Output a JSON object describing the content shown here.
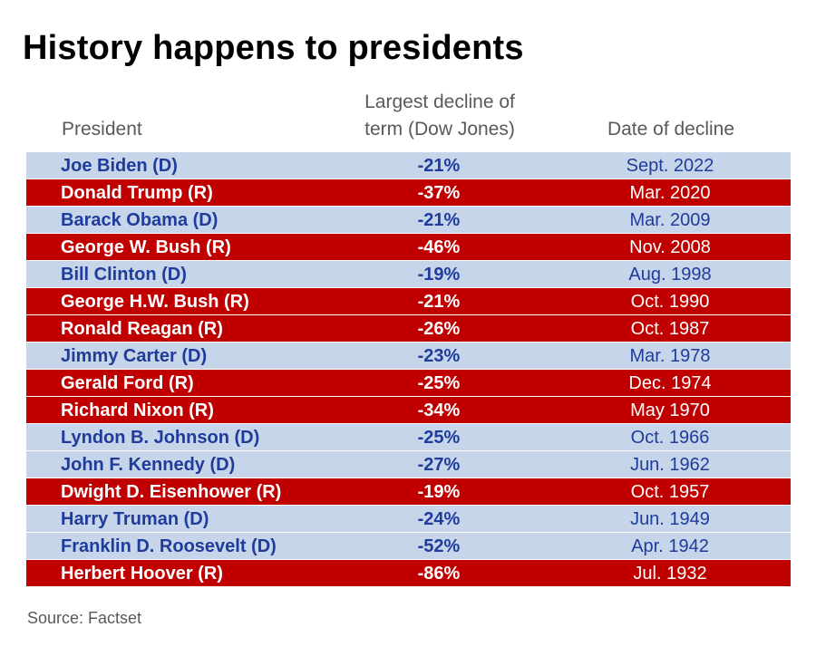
{
  "title": "History happens to presidents",
  "headers": {
    "president": "President",
    "decline_line1": "Largest decline of",
    "decline_line2": "term (Dow Jones)",
    "date": "Date of decline"
  },
  "source": "Source: Factset",
  "colors": {
    "democrat_row": "#c6d5ea",
    "democrat_text": "#1f3c9b",
    "republican_row": "#c00000",
    "republican_text": "#ffffff"
  },
  "chart_data": {
    "type": "table",
    "title": "History happens to presidents",
    "columns": [
      "President",
      "Largest decline of term (Dow Jones)",
      "Date of decline"
    ],
    "rows": [
      {
        "president": "Joe Biden (D)",
        "party": "D",
        "decline": "-21%",
        "date": "Sept. 2022"
      },
      {
        "president": "Donald Trump (R)",
        "party": "R",
        "decline": "-37%",
        "date": "Mar. 2020"
      },
      {
        "president": "Barack Obama (D)",
        "party": "D",
        "decline": "-21%",
        "date": "Mar. 2009"
      },
      {
        "president": "George W. Bush (R)",
        "party": "R",
        "decline": "-46%",
        "date": "Nov. 2008"
      },
      {
        "president": "Bill Clinton (D)",
        "party": "D",
        "decline": "-19%",
        "date": "Aug. 1998"
      },
      {
        "president": "George H.W. Bush (R)",
        "party": "R",
        "decline": "-21%",
        "date": "Oct. 1990"
      },
      {
        "president": "Ronald Reagan (R)",
        "party": "R",
        "decline": "-26%",
        "date": "Oct. 1987"
      },
      {
        "president": "Jimmy Carter (D)",
        "party": "D",
        "decline": "-23%",
        "date": "Mar. 1978"
      },
      {
        "president": "Gerald Ford (R)",
        "party": "R",
        "decline": "-25%",
        "date": "Dec. 1974"
      },
      {
        "president": "Richard Nixon (R)",
        "party": "R",
        "decline": "-34%",
        "date": "May 1970"
      },
      {
        "president": "Lyndon B. Johnson (D)",
        "party": "D",
        "decline": "-25%",
        "date": "Oct. 1966"
      },
      {
        "president": "John F. Kennedy (D)",
        "party": "D",
        "decline": "-27%",
        "date": "Jun. 1962"
      },
      {
        "president": "Dwight D. Eisenhower (R)",
        "party": "R",
        "decline": "-19%",
        "date": "Oct. 1957"
      },
      {
        "president": "Harry Truman (D)",
        "party": "D",
        "decline": "-24%",
        "date": "Jun. 1949"
      },
      {
        "president": "Franklin D. Roosevelt (D)",
        "party": "D",
        "decline": "-52%",
        "date": "Apr. 1942"
      },
      {
        "president": "Herbert Hoover (R)",
        "party": "R",
        "decline": "-86%",
        "date": "Jul. 1932"
      }
    ]
  }
}
